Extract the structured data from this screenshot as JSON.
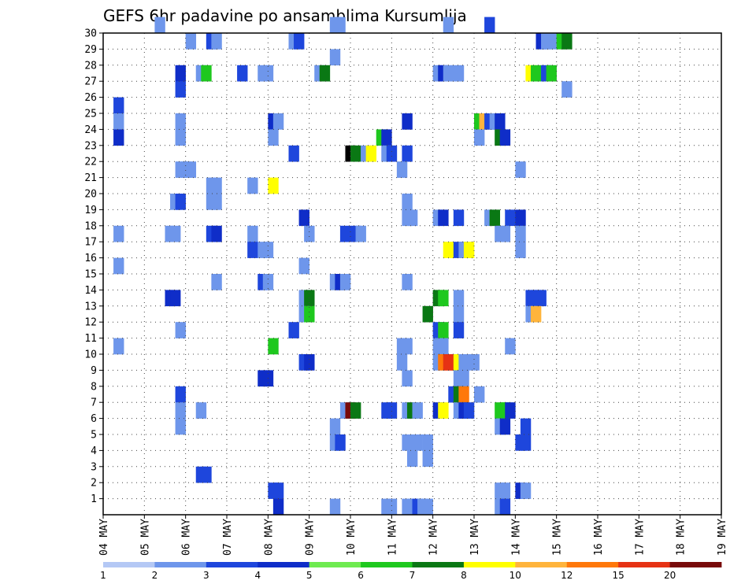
{
  "chart_data": {
    "type": "heatmap",
    "title": "GEFS 6hr padavine po ansamblima Kursumlija",
    "xlabel": "",
    "ylabel": "",
    "x_tick_labels": [
      "04 MAY",
      "05 MAY",
      "06 MAY",
      "07 MAY",
      "08 MAY",
      "09 MAY",
      "10 MAY",
      "11 MAY",
      "12 MAY",
      "13 MAY",
      "14 MAY",
      "15 MAY",
      "16 MAY",
      "17 MAY",
      "18 MAY",
      "19 MAY"
    ],
    "y_tick_labels": [
      "1",
      "2",
      "3",
      "4",
      "5",
      "6",
      "7",
      "8",
      "9",
      "10",
      "11",
      "12",
      "13",
      "14",
      "15",
      "16",
      "17",
      "18",
      "19",
      "20",
      "21",
      "22",
      "23",
      "24",
      "25",
      "26",
      "27",
      "28",
      "29",
      "30"
    ],
    "ylim": [
      0,
      30
    ],
    "x_steps_per_day": 4,
    "n_days": 15,
    "grid": true,
    "legend_placement": "bottom",
    "levels": [
      "1",
      "2",
      "3",
      "4",
      "5",
      "6",
      "7",
      "8",
      "10",
      "12",
      "15",
      "20"
    ],
    "colors": [
      "#b4c8f5",
      "#6e96eb",
      "#1e46dc",
      "#0f2dc8",
      "#6eeb50",
      "#1ec81e",
      "#0a7814",
      "#ffff00",
      "#ffb43c",
      "#ff780a",
      "#e63214",
      "#780a0a"
    ],
    "cells": [
      [
        5,
        30,
        1
      ],
      [
        22,
        30,
        1
      ],
      [
        22.5,
        30,
        1
      ],
      [
        33,
        30,
        1
      ],
      [
        37,
        30,
        2
      ],
      [
        8,
        29,
        1
      ],
      [
        10,
        29,
        2
      ],
      [
        10.5,
        29,
        1
      ],
      [
        18,
        29,
        1
      ],
      [
        18.5,
        29,
        2
      ],
      [
        42,
        29,
        3
      ],
      [
        42.5,
        29,
        1
      ],
      [
        43,
        29,
        1
      ],
      [
        44,
        29,
        5
      ],
      [
        44.5,
        29,
        6
      ],
      [
        22,
        28,
        1
      ],
      [
        7,
        27,
        3
      ],
      [
        9,
        27,
        1
      ],
      [
        9.5,
        27,
        5
      ],
      [
        13,
        27,
        2
      ],
      [
        15,
        27,
        1
      ],
      [
        15.5,
        27,
        1
      ],
      [
        20.5,
        27,
        1
      ],
      [
        21,
        27,
        6
      ],
      [
        32,
        27,
        1
      ],
      [
        32.5,
        27,
        3
      ],
      [
        33,
        27,
        1
      ],
      [
        34,
        27,
        1
      ],
      [
        41,
        27,
        7
      ],
      [
        41.5,
        27,
        5
      ],
      [
        42.5,
        27,
        2
      ],
      [
        43,
        27,
        5
      ],
      [
        7,
        26,
        2
      ],
      [
        44.5,
        26,
        1
      ],
      [
        1,
        25,
        2
      ],
      [
        1,
        24,
        1
      ],
      [
        7,
        24,
        1
      ],
      [
        16,
        24,
        3
      ],
      [
        16.5,
        24,
        1
      ],
      [
        29,
        24,
        3
      ],
      [
        36,
        24,
        5
      ],
      [
        36.5,
        24,
        8
      ],
      [
        37,
        24,
        2
      ],
      [
        37.5,
        24,
        1
      ],
      [
        38,
        24,
        3
      ],
      [
        1,
        23,
        3
      ],
      [
        7,
        23,
        1
      ],
      [
        16,
        23,
        1
      ],
      [
        26.5,
        23,
        5
      ],
      [
        27,
        23,
        3
      ],
      [
        36,
        23,
        1
      ],
      [
        38,
        23,
        6
      ],
      [
        38.5,
        23,
        3
      ],
      [
        18,
        22,
        2
      ],
      [
        23.5,
        22,
        12
      ],
      [
        24,
        22,
        6
      ],
      [
        25,
        22,
        1
      ],
      [
        25.5,
        22,
        7
      ],
      [
        27,
        22,
        1
      ],
      [
        27.5,
        22,
        2
      ],
      [
        29,
        22,
        2
      ],
      [
        7,
        21,
        1
      ],
      [
        7.5,
        21,
        1
      ],
      [
        8,
        21,
        1
      ],
      [
        28.5,
        21,
        1
      ],
      [
        40,
        21,
        1
      ],
      [
        10,
        20,
        1
      ],
      [
        10.5,
        20,
        1
      ],
      [
        14,
        20,
        1
      ],
      [
        16,
        20,
        7
      ],
      [
        6.5,
        19,
        1
      ],
      [
        7,
        19,
        2
      ],
      [
        10,
        19,
        1
      ],
      [
        10.5,
        19,
        1
      ],
      [
        29,
        19,
        1
      ],
      [
        19,
        18,
        3
      ],
      [
        29,
        18,
        1
      ],
      [
        29.5,
        18,
        1
      ],
      [
        32,
        18,
        1
      ],
      [
        32.5,
        18,
        3
      ],
      [
        34,
        18,
        2
      ],
      [
        37,
        18,
        1
      ],
      [
        37.5,
        18,
        6
      ],
      [
        39,
        18,
        2
      ],
      [
        40,
        18,
        3
      ],
      [
        1,
        17,
        1
      ],
      [
        6,
        17,
        1
      ],
      [
        6.5,
        17,
        1
      ],
      [
        10,
        17,
        2
      ],
      [
        10.5,
        17,
        3
      ],
      [
        14,
        17,
        1
      ],
      [
        19.5,
        17,
        1
      ],
      [
        23,
        17,
        2
      ],
      [
        24,
        17,
        2
      ],
      [
        24.5,
        17,
        1
      ],
      [
        38,
        17,
        1
      ],
      [
        38.5,
        17,
        1
      ],
      [
        40,
        17,
        1
      ],
      [
        14,
        16,
        2
      ],
      [
        15,
        16,
        1
      ],
      [
        15.5,
        16,
        1
      ],
      [
        33,
        16,
        7
      ],
      [
        34,
        16,
        2
      ],
      [
        34.5,
        16,
        1
      ],
      [
        35,
        16,
        7
      ],
      [
        40,
        16,
        1
      ],
      [
        1,
        15,
        1
      ],
      [
        19,
        15,
        1
      ],
      [
        10.5,
        14,
        1
      ],
      [
        15,
        14,
        2
      ],
      [
        15.5,
        14,
        1
      ],
      [
        22,
        14,
        1
      ],
      [
        22.5,
        14,
        3
      ],
      [
        23,
        14,
        1
      ],
      [
        29,
        14,
        1
      ],
      [
        6,
        13,
        3
      ],
      [
        6.5,
        13,
        3
      ],
      [
        19,
        13,
        1
      ],
      [
        19.5,
        13,
        6
      ],
      [
        32,
        13,
        6
      ],
      [
        32.5,
        13,
        5
      ],
      [
        34,
        13,
        1
      ],
      [
        41,
        13,
        2
      ],
      [
        41.5,
        13,
        2
      ],
      [
        42,
        13,
        2
      ],
      [
        19,
        12,
        1
      ],
      [
        19.5,
        12,
        5
      ],
      [
        31,
        12,
        6
      ],
      [
        34,
        12,
        1
      ],
      [
        41,
        12,
        1
      ],
      [
        41.5,
        12,
        8
      ],
      [
        7,
        11,
        1
      ],
      [
        18,
        11,
        2
      ],
      [
        32,
        11,
        2
      ],
      [
        32.5,
        11,
        5
      ],
      [
        34,
        11,
        2
      ],
      [
        1,
        10,
        1
      ],
      [
        16,
        10,
        5
      ],
      [
        28.5,
        10,
        1
      ],
      [
        29,
        10,
        1
      ],
      [
        32,
        10,
        1
      ],
      [
        32.5,
        10,
        1
      ],
      [
        39,
        10,
        1
      ],
      [
        19,
        9,
        2
      ],
      [
        19.5,
        9,
        3
      ],
      [
        28.5,
        9,
        1
      ],
      [
        32,
        9,
        1
      ],
      [
        32.5,
        9,
        9
      ],
      [
        33,
        9,
        10
      ],
      [
        33.5,
        9,
        10
      ],
      [
        34,
        9,
        7
      ],
      [
        34.5,
        9,
        1
      ],
      [
        35.5,
        9,
        1
      ],
      [
        15,
        8,
        3
      ],
      [
        15.5,
        8,
        3
      ],
      [
        29,
        8,
        1
      ],
      [
        34,
        8,
        1
      ],
      [
        34.5,
        8,
        1
      ],
      [
        7,
        7,
        2
      ],
      [
        33.5,
        7,
        2
      ],
      [
        34,
        7,
        6
      ],
      [
        34.5,
        7,
        9
      ],
      [
        36,
        7,
        1
      ],
      [
        7,
        6,
        1
      ],
      [
        9,
        6,
        1
      ],
      [
        23,
        6,
        1
      ],
      [
        23.5,
        6,
        11
      ],
      [
        24,
        6,
        6
      ],
      [
        27,
        6,
        2
      ],
      [
        27.5,
        6,
        2
      ],
      [
        29,
        6,
        1
      ],
      [
        29.5,
        6,
        6
      ],
      [
        30,
        6,
        1
      ],
      [
        32,
        6,
        3
      ],
      [
        32.5,
        6,
        7
      ],
      [
        34,
        6,
        1
      ],
      [
        34.5,
        6,
        3
      ],
      [
        35,
        6,
        2
      ],
      [
        38,
        6,
        5
      ],
      [
        38.5,
        6,
        5
      ],
      [
        39,
        6,
        3
      ],
      [
        7,
        5,
        1
      ],
      [
        22,
        5,
        1
      ],
      [
        38,
        5,
        1
      ],
      [
        38.5,
        5,
        3
      ],
      [
        40.5,
        5,
        2
      ],
      [
        22,
        4,
        1
      ],
      [
        22.5,
        4,
        2
      ],
      [
        29,
        4,
        1
      ],
      [
        30,
        4,
        1
      ],
      [
        31,
        4,
        1
      ],
      [
        40,
        4,
        2
      ],
      [
        40.5,
        4,
        2
      ],
      [
        29.5,
        3,
        1
      ],
      [
        31,
        3,
        1
      ],
      [
        9,
        2,
        2
      ],
      [
        9.5,
        2,
        2
      ],
      [
        16,
        1,
        2
      ],
      [
        16.5,
        1,
        2
      ],
      [
        38,
        1,
        1
      ],
      [
        38.5,
        1,
        1
      ],
      [
        40,
        1,
        3
      ],
      [
        40.5,
        1,
        1
      ],
      [
        16.5,
        0,
        3
      ],
      [
        22,
        0,
        1
      ],
      [
        27,
        0,
        1
      ],
      [
        27.5,
        0,
        1
      ],
      [
        29,
        0,
        1
      ],
      [
        29.5,
        0,
        1
      ],
      [
        30,
        0,
        2
      ],
      [
        30.5,
        0,
        1
      ],
      [
        31,
        0,
        1
      ],
      [
        38,
        0,
        1
      ],
      [
        38.5,
        0,
        2
      ]
    ]
  }
}
